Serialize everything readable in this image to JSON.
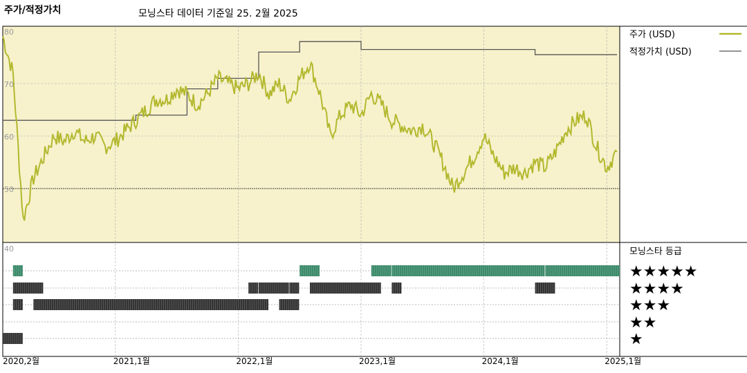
{
  "header": {
    "left_title": "주가/적정가치",
    "center_title": "모닝스타 데이터 기준일 25. 2월 2025"
  },
  "colors": {
    "panel_bg": "#f7f2cc",
    "price_line": "#b3b82e",
    "fair_value_line": "#555555",
    "rating_5": "#3b8a6a",
    "rating_other": "#333333"
  },
  "chart_data": {
    "type": "line",
    "x_ticks": [
      "2020,2월",
      "2021,1월",
      "2022,1월",
      "2023,1월",
      "2024,1월",
      "2025,1월"
    ],
    "y_ticks": [
      "80",
      "70",
      "60",
      "50",
      "40"
    ],
    "ylim": [
      40,
      80
    ],
    "grid": true,
    "legend_placement": "right",
    "series": [
      {
        "name": "주가 (USD)",
        "points": [
          [
            "2020-02",
            79
          ],
          [
            "2020-03",
            72
          ],
          [
            "2020-04",
            44
          ],
          [
            "2020-05",
            52
          ],
          [
            "2020-06",
            56
          ],
          [
            "2020-07",
            60
          ],
          [
            "2020-08",
            59
          ],
          [
            "2020-09",
            61
          ],
          [
            "2020-10",
            59
          ],
          [
            "2020-11",
            60
          ],
          [
            "2020-12",
            58
          ],
          [
            "2021-01",
            59
          ],
          [
            "2021-02",
            61
          ],
          [
            "2021-03",
            63
          ],
          [
            "2021-04",
            65
          ],
          [
            "2021-05",
            67
          ],
          [
            "2021-06",
            67
          ],
          [
            "2021-07",
            69
          ],
          [
            "2021-08",
            68
          ],
          [
            "2021-09",
            66
          ],
          [
            "2021-10",
            68
          ],
          [
            "2021-11",
            71
          ],
          [
            "2021-12",
            70
          ],
          [
            "2022-01",
            69
          ],
          [
            "2022-02",
            70
          ],
          [
            "2022-03",
            72
          ],
          [
            "2022-04",
            68
          ],
          [
            "2022-05",
            70
          ],
          [
            "2022-06",
            67
          ],
          [
            "2022-07",
            71
          ],
          [
            "2022-08",
            74
          ],
          [
            "2022-09",
            68
          ],
          [
            "2022-10",
            60
          ],
          [
            "2022-11",
            64
          ],
          [
            "2022-12",
            66
          ],
          [
            "2023-01",
            64
          ],
          [
            "2023-02",
            68
          ],
          [
            "2023-03",
            66
          ],
          [
            "2023-04",
            63
          ],
          [
            "2023-05",
            62
          ],
          [
            "2023-06",
            61
          ],
          [
            "2023-07",
            62
          ],
          [
            "2023-08",
            59
          ],
          [
            "2023-09",
            55
          ],
          [
            "2023-10",
            50
          ],
          [
            "2023-11",
            53
          ],
          [
            "2023-12",
            56
          ],
          [
            "2024-01",
            60
          ],
          [
            "2024-02",
            56
          ],
          [
            "2024-03",
            53
          ],
          [
            "2024-04",
            54
          ],
          [
            "2024-05",
            53
          ],
          [
            "2024-06",
            55
          ],
          [
            "2024-07",
            54
          ],
          [
            "2024-08",
            57
          ],
          [
            "2024-09",
            61
          ],
          [
            "2024-10",
            63
          ],
          [
            "2024-11",
            64
          ],
          [
            "2024-12",
            58
          ],
          [
            "2025-01",
            54
          ],
          [
            "2025-02",
            57
          ]
        ]
      },
      {
        "name": "적정가치 (USD)",
        "points": [
          [
            "2020-02",
            63
          ],
          [
            "2021-03",
            63
          ],
          [
            "2021-03",
            64
          ],
          [
            "2021-08",
            64
          ],
          [
            "2021-08",
            69
          ],
          [
            "2021-11",
            69
          ],
          [
            "2021-11",
            71
          ],
          [
            "2022-03",
            71
          ],
          [
            "2022-03",
            76
          ],
          [
            "2022-07",
            76
          ],
          [
            "2022-07",
            78
          ],
          [
            "2023-01",
            78
          ],
          [
            "2023-01",
            76.5
          ],
          [
            "2024-06",
            76.5
          ],
          [
            "2024-06",
            75.5
          ],
          [
            "2025-02",
            75.5
          ]
        ]
      }
    ],
    "star_rating": {
      "title": "모닝스타 등급",
      "labels": [
        "★★★★★",
        "★★★★",
        "★★★",
        "★★",
        "★"
      ],
      "periods": [
        {
          "stars": 1,
          "from": "2020-02",
          "to": "2020-03"
        },
        {
          "stars": 3,
          "from": "2020-03",
          "to": "2020-03"
        },
        {
          "stars": 5,
          "from": "2020-03",
          "to": "2020-03"
        },
        {
          "stars": 4,
          "from": "2020-03",
          "to": "2020-05"
        },
        {
          "stars": 3,
          "from": "2020-05",
          "to": "2022-02"
        },
        {
          "stars": 4,
          "from": "2022-02",
          "to": "2022-02"
        },
        {
          "stars": 3,
          "from": "2022-02",
          "to": "2022-03"
        },
        {
          "stars": 4,
          "from": "2022-03",
          "to": "2022-05"
        },
        {
          "stars": 3,
          "from": "2022-05",
          "to": "2022-06"
        },
        {
          "stars": 4,
          "from": "2022-06",
          "to": "2022-06"
        },
        {
          "stars": 5,
          "from": "2022-07",
          "to": "2022-08"
        },
        {
          "stars": 4,
          "from": "2022-08",
          "to": "2023-02"
        },
        {
          "stars": 5,
          "from": "2023-02",
          "to": "2023-03"
        },
        {
          "stars": 4,
          "from": "2023-04",
          "to": "2023-04"
        },
        {
          "stars": 5,
          "from": "2023-04",
          "to": "2024-06"
        },
        {
          "stars": 4,
          "from": "2024-06",
          "to": "2024-07"
        },
        {
          "stars": 5,
          "from": "2024-07",
          "to": "2025-02"
        }
      ]
    }
  }
}
